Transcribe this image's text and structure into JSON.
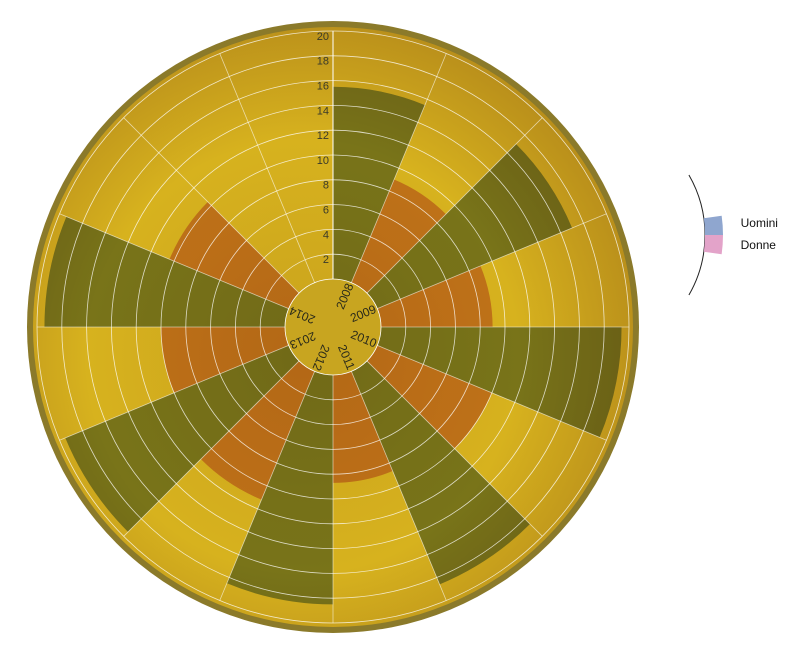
{
  "chart_data": {
    "type": "radial-bar",
    "categories": [
      "2008",
      "2009",
      "2010",
      "2011",
      "2012",
      "2013",
      "2014"
    ],
    "series": [
      {
        "name": "Uomini",
        "color": "#8fa6cf",
        "values": [
          15.5,
          17,
          19.4,
          18.6,
          18.5,
          19.5,
          19.4
        ]
      },
      {
        "name": "Donne",
        "color": "#e3a3c9",
        "values": [
          9,
          9,
          10,
          8.7,
          11.2,
          10,
          10.4
        ]
      }
    ],
    "rlim": [
      0,
      20
    ],
    "rticks": [
      2,
      4,
      6,
      8,
      10,
      12,
      14,
      16,
      18,
      20
    ],
    "grid": true
  }
}
